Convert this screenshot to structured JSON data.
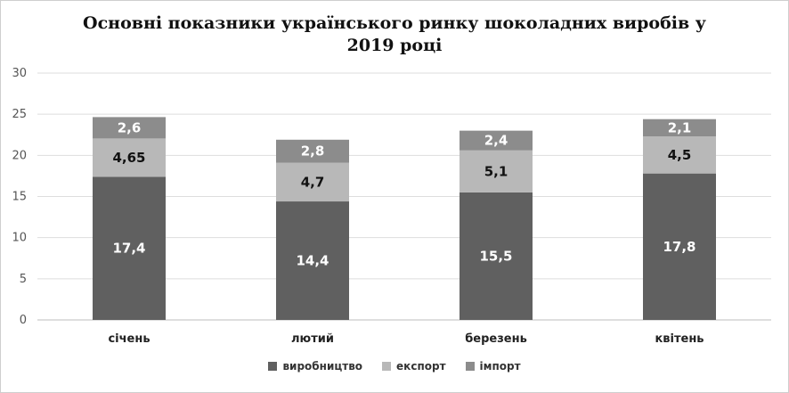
{
  "chart_data": {
    "type": "bar",
    "stacked": true,
    "title_lines": [
      "Основні показники українського ринку шоколадних виробів у",
      "2019 році"
    ],
    "categories": [
      "січень",
      "лютий",
      "березень",
      "квітень"
    ],
    "series": [
      {
        "name": "виробництво",
        "values": [
          17.4,
          14.4,
          15.5,
          17.8
        ],
        "labels": [
          "17,4",
          "14,4",
          "15,5",
          "17,8"
        ],
        "color": "#606060",
        "label_color": "#ffffff"
      },
      {
        "name": "експорт",
        "values": [
          4.65,
          4.7,
          5.1,
          4.5
        ],
        "labels": [
          "4,65",
          "4,7",
          "5,1",
          "4,5"
        ],
        "color": "#b8b8b8",
        "label_color": "#111111"
      },
      {
        "name": "імпорт",
        "values": [
          2.6,
          2.8,
          2.4,
          2.1
        ],
        "labels": [
          "2,6",
          "2,8",
          "2,4",
          "2,1"
        ],
        "color": "#8c8c8c",
        "label_color": "#ffffff"
      }
    ],
    "y_ticks": [
      "0",
      "5",
      "10",
      "15",
      "20",
      "25",
      "30"
    ],
    "ylim": [
      0,
      30
    ],
    "grid": true,
    "legend_position": "bottom"
  }
}
